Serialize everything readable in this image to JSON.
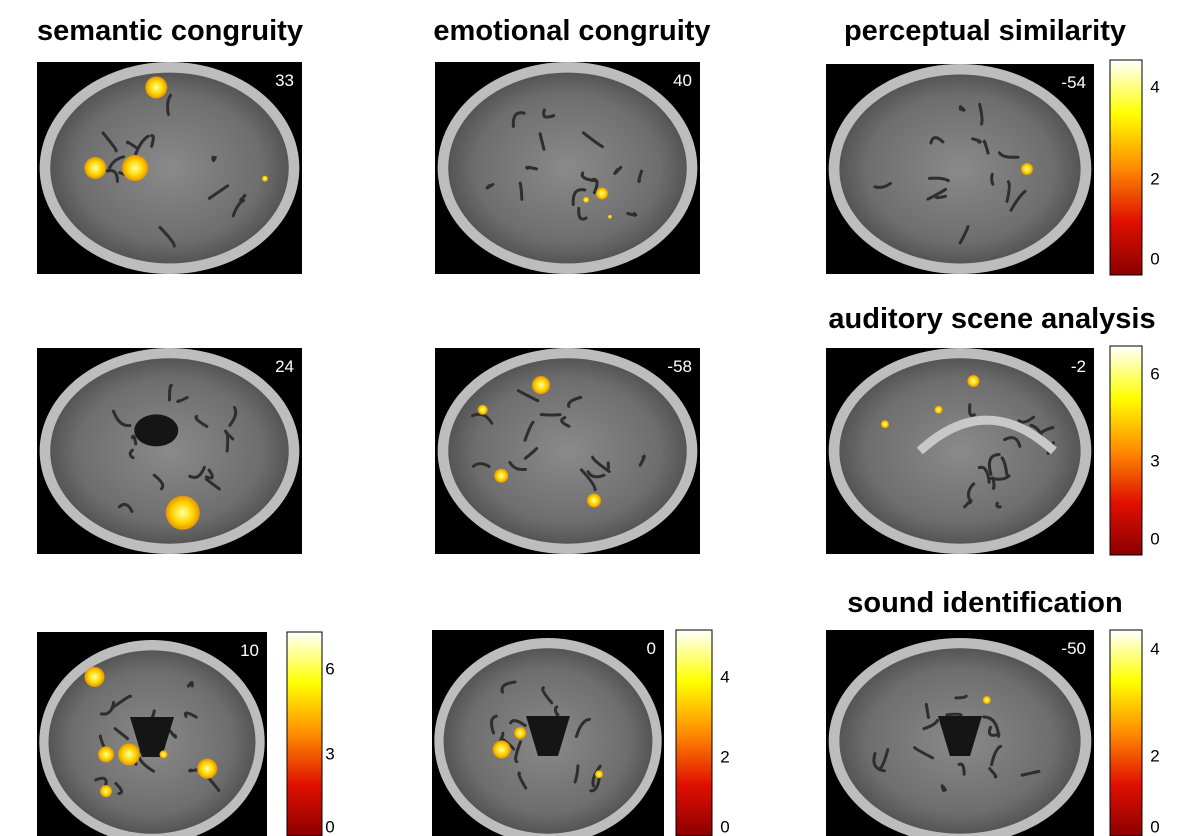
{
  "titles": [
    "semantic congruity",
    "emotional congruity",
    "perceptual similarity",
    "auditory scene analysis",
    "sound identification"
  ],
  "panels": [
    {
      "slice": "33"
    },
    {
      "slice": "40"
    },
    {
      "slice": "-54"
    },
    {
      "slice": "24"
    },
    {
      "slice": "-58"
    },
    {
      "slice": "-2"
    },
    {
      "slice": "10"
    },
    {
      "slice": "0"
    },
    {
      "slice": "-50"
    }
  ],
  "colorbars": [
    {
      "ticks": [
        "6",
        "3",
        "0"
      ]
    },
    {
      "ticks": [
        "4",
        "2",
        "0"
      ]
    },
    {
      "ticks": [
        "4",
        "2",
        "0"
      ]
    },
    {
      "ticks": [
        "6",
        "3",
        "0"
      ]
    },
    {
      "ticks": [
        "4",
        "2",
        "0"
      ]
    }
  ]
}
